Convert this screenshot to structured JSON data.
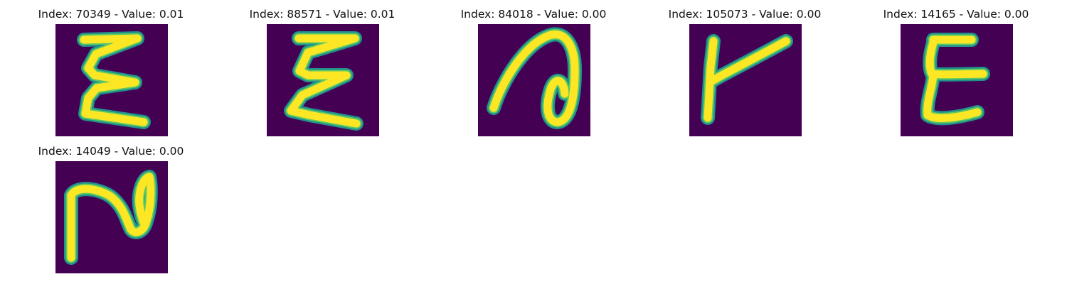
{
  "panel_colors": {
    "background": "#440154",
    "edge": "#21918c",
    "mid": "#5ec962",
    "stroke": "#fde725"
  },
  "panels": [
    {
      "caption": "Index: 70349 - Value: 0.01",
      "glyph": "E-zigzag"
    },
    {
      "caption": "Index: 88571 - Value: 0.01",
      "glyph": "E-zigzag"
    },
    {
      "caption": "Index: 84018 - Value: 0.00",
      "glyph": "loop-stroke"
    },
    {
      "caption": "Index: 105073 - Value: 0.00",
      "glyph": "r-stroke"
    },
    {
      "caption": "Index: 14165 - Value: 0.00",
      "glyph": "E-curly"
    },
    {
      "caption": "Index: 14049 - Value: 0.00",
      "glyph": "loop-stroke"
    }
  ]
}
